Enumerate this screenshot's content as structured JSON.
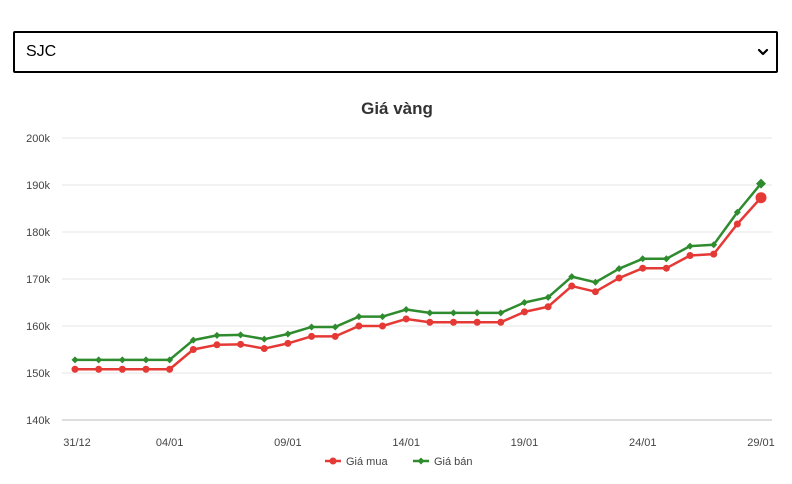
{
  "selector": {
    "value": "SJC"
  },
  "chart_data": {
    "type": "line",
    "title": "Giá vàng",
    "xlabel": "",
    "ylabel": "",
    "ylim": [
      140,
      200
    ],
    "y_ticks": [
      "140k",
      "150k",
      "160k",
      "170k",
      "180k",
      "190k",
      "200k"
    ],
    "x": [
      "31/12",
      "01/01",
      "02/01",
      "03/01",
      "04/01",
      "05/01",
      "06/01",
      "07/01",
      "08/01",
      "09/01",
      "10/01",
      "11/01",
      "12/01",
      "13/01",
      "14/01",
      "15/01",
      "16/01",
      "17/01",
      "18/01",
      "19/01",
      "20/01",
      "21/01",
      "22/01",
      "23/01",
      "24/01",
      "25/01",
      "26/01",
      "27/01",
      "28/01",
      "29/01"
    ],
    "x_ticks": [
      "31/12",
      "04/01",
      "09/01",
      "14/01",
      "19/01",
      "24/01",
      "29/01"
    ],
    "grid": true,
    "legend_position": "bottom",
    "series": [
      {
        "name": "Giá mua",
        "color": "#e53935",
        "marker": "circle",
        "values": [
          150.8,
          150.8,
          150.8,
          150.8,
          150.8,
          155.0,
          156.0,
          156.1,
          155.2,
          156.3,
          157.8,
          157.8,
          160.0,
          160.0,
          161.5,
          160.8,
          160.8,
          160.8,
          160.8,
          163.0,
          164.1,
          168.5,
          167.3,
          170.2,
          172.3,
          172.3,
          175.0,
          175.3,
          181.7,
          187.3
        ]
      },
      {
        "name": "Giá bán",
        "color": "#2e8b2e",
        "marker": "diamond",
        "values": [
          152.8,
          152.8,
          152.8,
          152.8,
          152.8,
          157.0,
          158.0,
          158.1,
          157.2,
          158.3,
          159.8,
          159.8,
          162.0,
          162.0,
          163.5,
          162.8,
          162.8,
          162.8,
          162.8,
          165.0,
          166.1,
          170.5,
          169.3,
          172.2,
          174.3,
          174.3,
          177.0,
          177.3,
          184.2,
          190.3
        ]
      }
    ]
  }
}
